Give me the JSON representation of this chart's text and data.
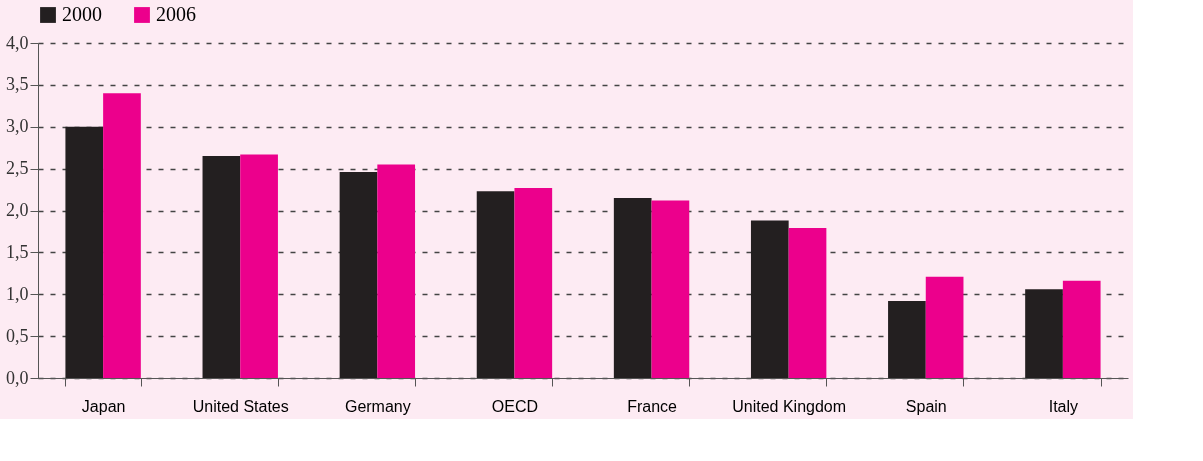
{
  "chart_data": {
    "type": "bar",
    "categories": [
      "Japan",
      "United States",
      "Germany",
      "OECD",
      "France",
      "United Kingdom",
      "Spain",
      "Italy"
    ],
    "series": [
      {
        "name": "2000",
        "color": "#231f20",
        "values": [
          3.0,
          2.65,
          2.46,
          2.23,
          2.15,
          1.88,
          0.92,
          1.06
        ]
      },
      {
        "name": "2006",
        "color": "#ec008c",
        "values": [
          3.4,
          2.67,
          2.55,
          2.27,
          2.12,
          1.79,
          1.21,
          1.16
        ]
      }
    ],
    "ylim": [
      0,
      4
    ],
    "yticks": [
      {
        "value": 0,
        "label": "0,0"
      },
      {
        "value": 0.5,
        "label": "0,5"
      },
      {
        "value": 1,
        "label": "1,0"
      },
      {
        "value": 1.5,
        "label": "1,5"
      },
      {
        "value": 2,
        "label": "2,0"
      },
      {
        "value": 2.5,
        "label": "2,5"
      },
      {
        "value": 3,
        "label": "3,0"
      },
      {
        "value": 3.5,
        "label": "3,5"
      },
      {
        "value": 4,
        "label": "4,0"
      }
    ],
    "grid": "y",
    "legend": "top"
  }
}
